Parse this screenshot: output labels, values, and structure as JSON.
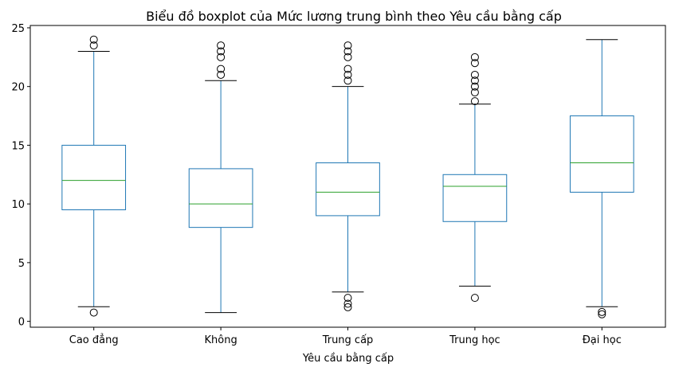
{
  "chart_data": {
    "type": "boxplot",
    "title": "Biểu đồ boxplot của Mức lương trung bình theo Yêu cầu bằng cấp",
    "xlabel": "Yêu cầu bằng cấp",
    "ylabel": "",
    "ylim": [
      -0.5,
      25.2
    ],
    "yticks": [
      0,
      5,
      10,
      15,
      20,
      25
    ],
    "grid": false,
    "colors": {
      "box": "#1f77b4",
      "median": "#2ca02c",
      "cap": "#000000",
      "outlier": "#000000"
    },
    "categories": [
      "Cao đẳng",
      "Không",
      "Trung cấp",
      "Trung học",
      "Đại học"
    ],
    "boxes": [
      {
        "category": "Cao đẳng",
        "whisker_low": 1.25,
        "q1": 9.5,
        "median": 12.0,
        "q3": 15.0,
        "whisker_high": 23.0,
        "outliers": [
          0.75,
          23.5,
          24.0
        ]
      },
      {
        "category": "Không",
        "whisker_low": 0.75,
        "q1": 8.0,
        "median": 10.0,
        "q3": 13.0,
        "whisker_high": 20.5,
        "outliers": [
          21.0,
          21.5,
          22.5,
          23.0,
          23.5
        ]
      },
      {
        "category": "Trung cấp",
        "whisker_low": 2.5,
        "q1": 9.0,
        "median": 11.0,
        "q3": 13.5,
        "whisker_high": 20.0,
        "outliers": [
          1.2,
          1.5,
          2.0,
          20.5,
          21.0,
          21.5,
          22.5,
          23.0,
          23.5
        ]
      },
      {
        "category": "Trung học",
        "whisker_low": 3.0,
        "q1": 8.5,
        "median": 11.5,
        "q3": 12.5,
        "whisker_high": 18.5,
        "outliers": [
          2.0,
          18.75,
          19.5,
          20.0,
          20.5,
          21.0,
          22.0,
          22.5
        ]
      },
      {
        "category": "Đại học",
        "whisker_low": 1.25,
        "q1": 11.0,
        "median": 13.5,
        "q3": 17.5,
        "whisker_high": 24.0,
        "outliers": [
          0.6,
          0.8
        ]
      }
    ]
  }
}
